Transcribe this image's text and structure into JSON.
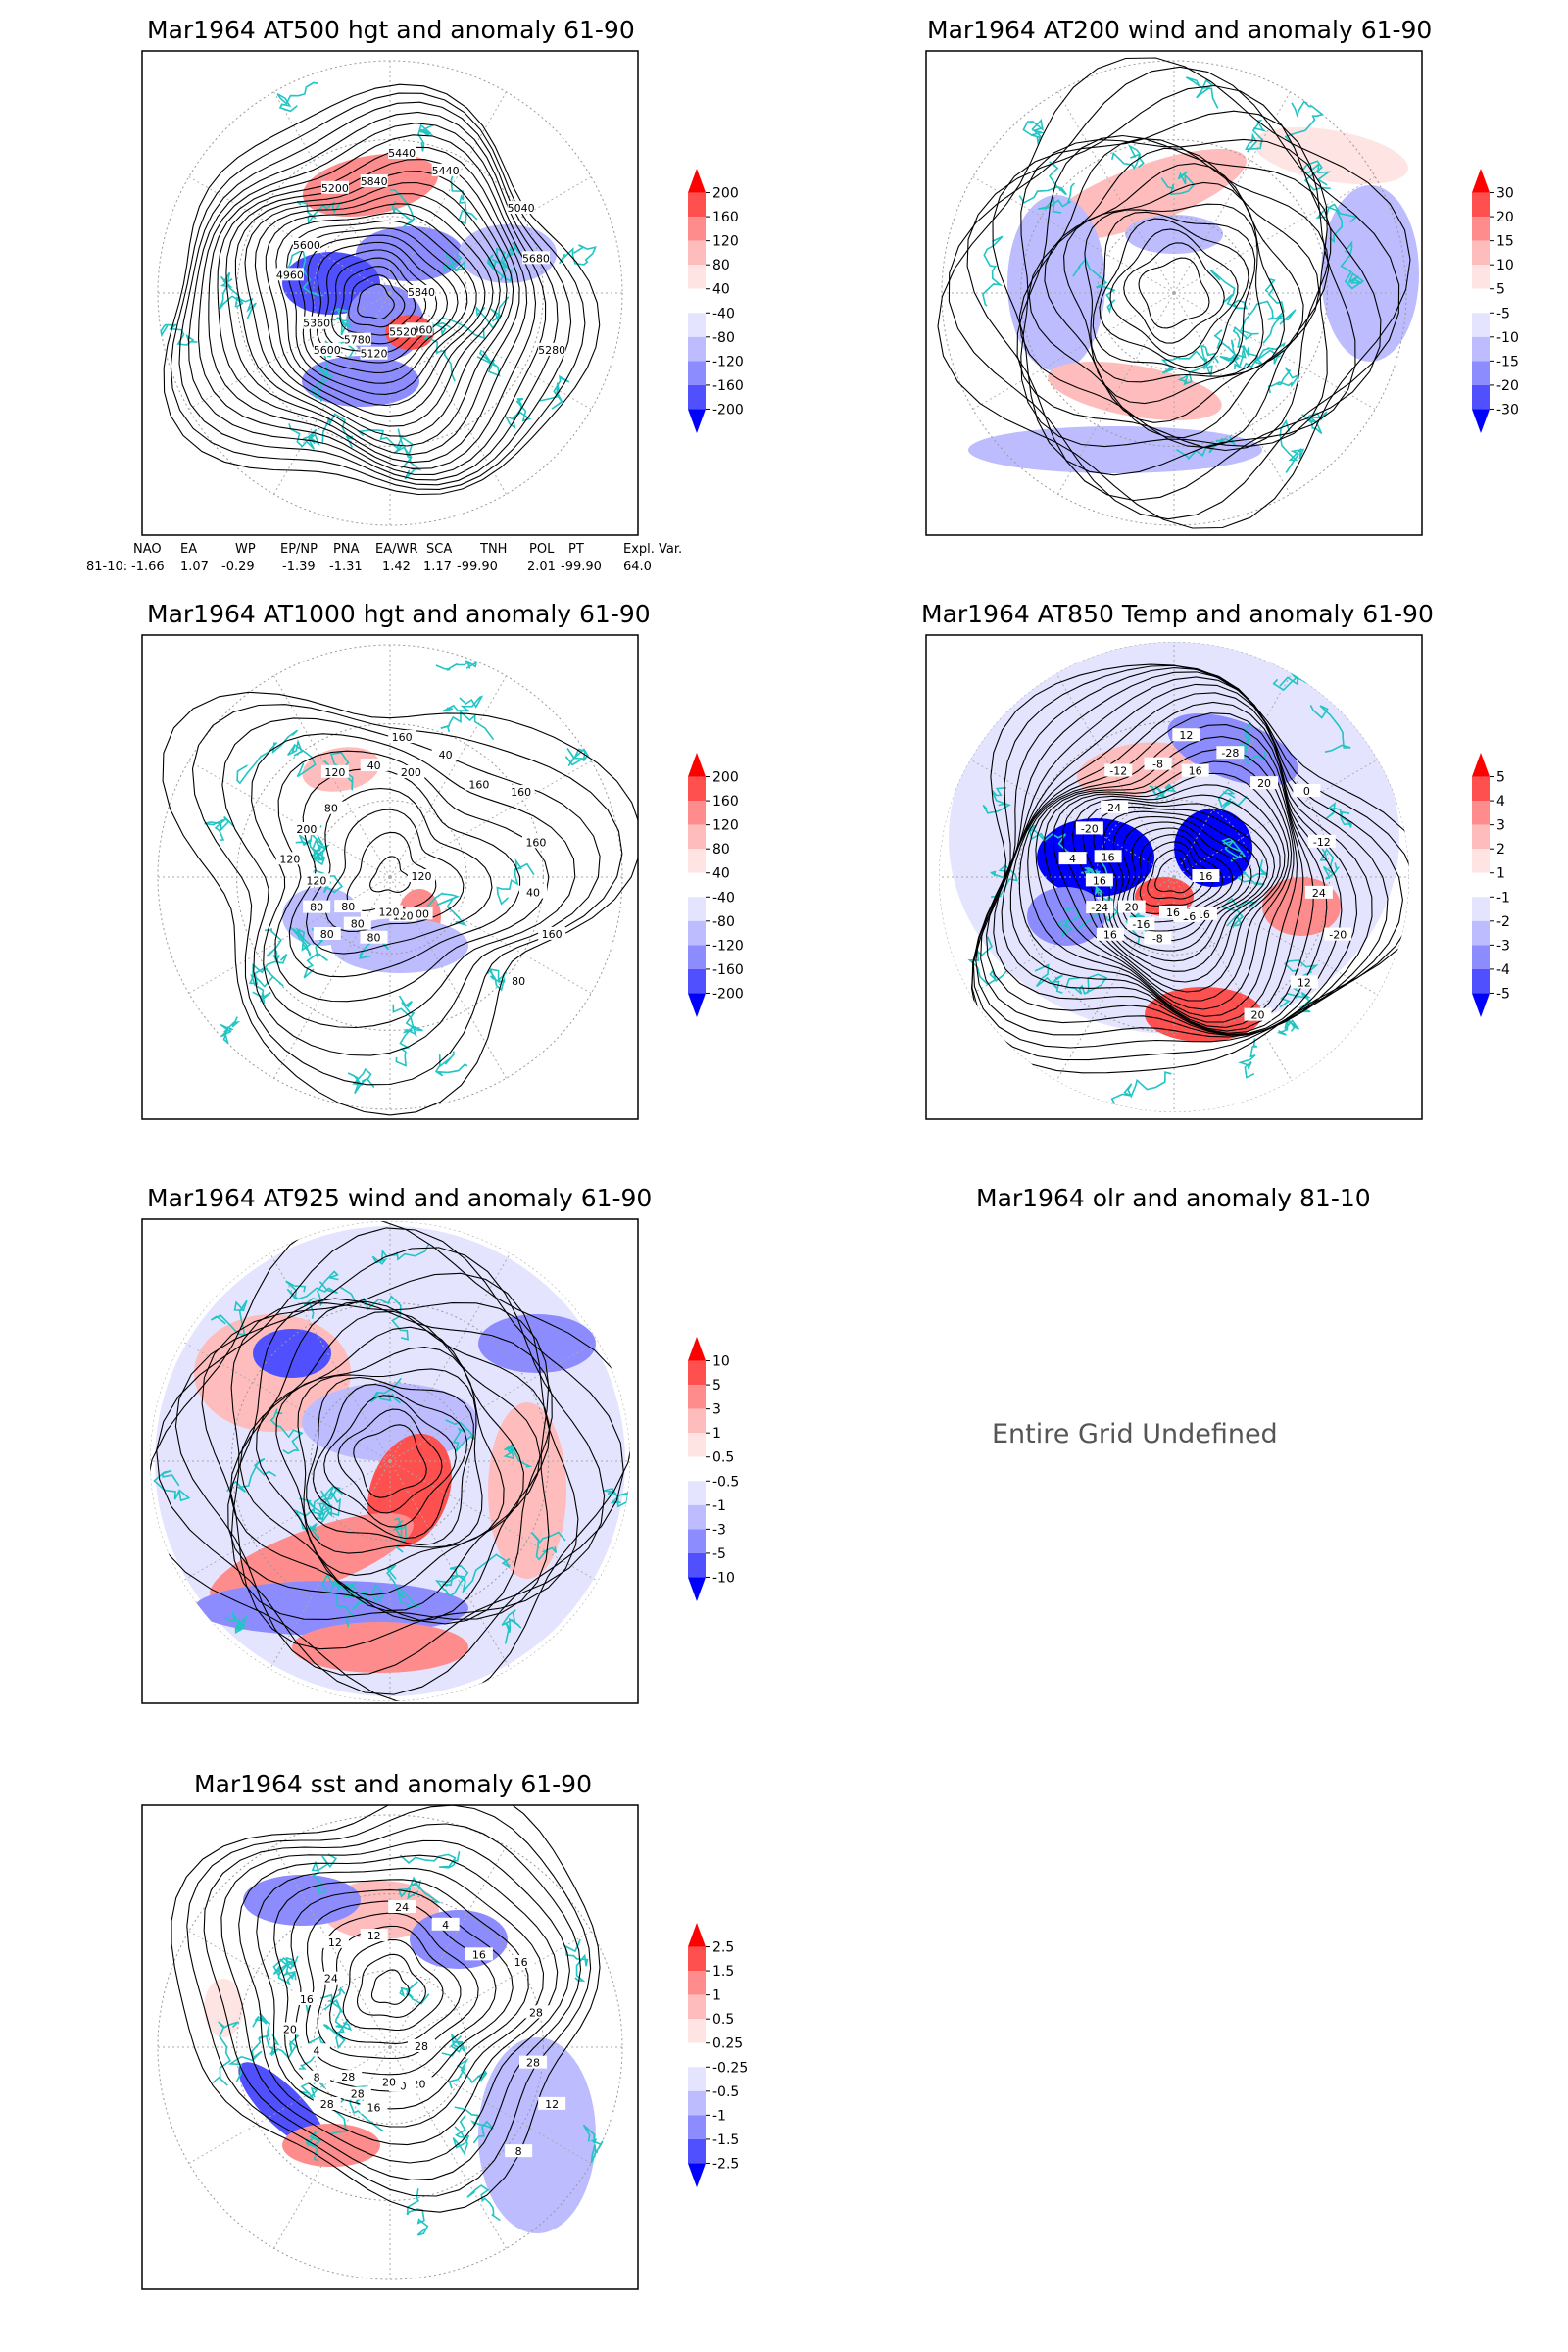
{
  "panels": [
    {
      "id": "p1",
      "title": "Mar1964 AT500 hgt and anomaly 61-90",
      "contour_labels": [
        "5840",
        "5600",
        "5440",
        "4960",
        "4960",
        "5040",
        "5120",
        "5200",
        "5280",
        "5360",
        "5440",
        "5520",
        "5600",
        "5680",
        "5780",
        "5840"
      ],
      "colorbar": [
        "200",
        "160",
        "120",
        "80",
        "40",
        "-40",
        "-80",
        "-120",
        "-160",
        "-200"
      ]
    },
    {
      "id": "p2",
      "title": "Mar1964 AT200 wind and anomaly 61-90",
      "contour_labels": [],
      "colorbar": [
        "30",
        "20",
        "15",
        "10",
        "5",
        "-5",
        "-10",
        "-15",
        "-20",
        "-30"
      ]
    },
    {
      "id": "p3",
      "title": "Mar1964 AT1000 hgt and anomaly 61-90",
      "contour_labels": [
        "120",
        "80",
        "160",
        "200",
        "120",
        "160",
        "80",
        "120",
        "160",
        "80",
        "40",
        "120",
        "200",
        "160",
        "80",
        "40",
        "80",
        "120",
        "160",
        "120",
        "80",
        "40",
        "80",
        "200"
      ],
      "colorbar": [
        "200",
        "160",
        "120",
        "80",
        "40",
        "-40",
        "-80",
        "-120",
        "-160",
        "-200"
      ]
    },
    {
      "id": "p4",
      "title": "Mar1964 AT850 Temp and anomaly 61-90",
      "contour_labels": [
        "16",
        "16",
        "12",
        "16",
        "4",
        "0",
        "-8",
        "-12",
        "-20",
        "-24",
        "-28",
        "-16",
        "-20",
        "-12",
        "-16",
        "-8",
        "12",
        "16",
        "20",
        "16",
        "24",
        "24",
        "20",
        "16",
        "20",
        "16"
      ],
      "colorbar": [
        "5",
        "4",
        "3",
        "2",
        "1",
        "-1",
        "-2",
        "-3",
        "-4",
        "-5"
      ]
    },
    {
      "id": "p5",
      "title": "Mar1964 AT925 wind and anomaly 61-90",
      "contour_labels": [],
      "colorbar": [
        "10",
        "5",
        "3",
        "1",
        "0.5",
        "-0.5",
        "-1",
        "-3",
        "-5",
        "-10"
      ]
    },
    {
      "id": "p6",
      "title": "Mar1964 olr and anomaly 81-10",
      "message": "Entire Grid Undefined"
    },
    {
      "id": "p7",
      "title": "Mar1964 sst and anomaly 61-90",
      "contour_labels": [
        "28",
        "28",
        "24",
        "20",
        "20",
        "16",
        "16",
        "12",
        "12",
        "8",
        "4",
        "0",
        "16",
        "28",
        "28",
        "12",
        "8",
        "4",
        "16",
        "20",
        "24",
        "28",
        "28"
      ],
      "colorbar": [
        "2.5",
        "1.5",
        "1",
        "0.5",
        "0.25",
        "-0.25",
        "-0.5",
        "-1",
        "-1.5",
        "-2.5"
      ]
    }
  ],
  "indices": {
    "headers": [
      "NAO",
      "EA",
      "WP",
      "EP/NP",
      "PNA",
      "EA/WR",
      "SCA",
      "TNH",
      "POL",
      "PT",
      "Expl. Var."
    ],
    "row_label": "81-10:",
    "values": [
      "-1.66",
      "1.07",
      "-0.29",
      "-1.39",
      "-1.31",
      "1.42",
      "1.17",
      "-99.90",
      "2.01",
      "-99.90",
      "64.0"
    ]
  },
  "colors": {
    "coastline": "#22c4c4",
    "contour": "#000000",
    "anomaly_scale": [
      "#ff0000",
      "#ff5050",
      "#ff8c8c",
      "#ffbcbc",
      "#ffe4e4",
      "#ffffff",
      "#e4e4ff",
      "#bcbcff",
      "#8c8cff",
      "#5050ff",
      "#0000ff"
    ]
  }
}
